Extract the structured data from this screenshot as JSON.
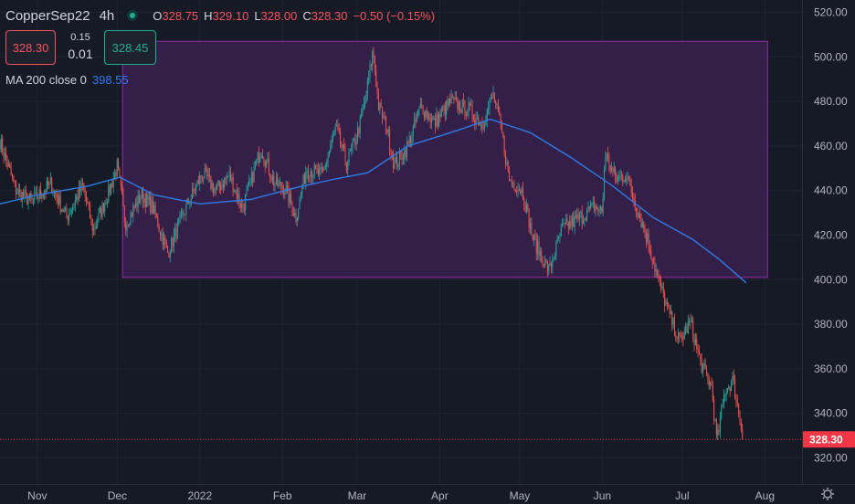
{
  "header": {
    "symbol": "CopperSep22",
    "timeframe": "4h",
    "open_label": "O",
    "open": "328.75",
    "high_label": "H",
    "high": "329.10",
    "low_label": "L",
    "low": "328.00",
    "close_label": "C",
    "close": "328.30",
    "change": "−0.50 (−0.15%)"
  },
  "trade": {
    "sell_price": "328.30",
    "spread_top": "0.15",
    "spread_bottom": "0.01",
    "buy_price": "328.45"
  },
  "indicator": {
    "label": "MA 200 close 0",
    "value": "398.55"
  },
  "colors": {
    "background": "#161a25",
    "up": "#26a69a",
    "down": "#ef5350",
    "ma": "#2e7be6",
    "box_fill": "#3a2150",
    "box_border": "#9c27b0",
    "price_tag": "#f23645"
  },
  "chart_data": {
    "type": "candlestick",
    "ylim": [
      316,
      524
    ],
    "y_ticks": [
      "520.00",
      "500.00",
      "480.00",
      "460.00",
      "440.00",
      "420.00",
      "400.00",
      "380.00",
      "360.00",
      "340.00",
      "320.00"
    ],
    "x_ticks": [
      "Nov",
      "Dec",
      "2022",
      "Feb",
      "Mar",
      "Apr",
      "May",
      "Jun",
      "Jul",
      "Aug"
    ],
    "last_price_label": "328.30",
    "last_price": 328.3,
    "rectangle": {
      "x_start": "2021-12-03",
      "x_end": "2022-08-02",
      "y_top": 507,
      "y_bottom": 401
    },
    "price_path": [
      [
        "2021-10-18",
        462
      ],
      [
        "2021-10-24",
        440
      ],
      [
        "2021-10-30",
        435
      ],
      [
        "2021-11-06",
        443
      ],
      [
        "2021-11-12",
        428
      ],
      [
        "2021-11-18",
        442
      ],
      [
        "2021-11-22",
        422
      ],
      [
        "2021-11-28",
        440
      ],
      [
        "2021-12-01",
        451
      ],
      [
        "2021-12-04",
        425
      ],
      [
        "2021-12-10",
        438
      ],
      [
        "2021-12-14",
        433
      ],
      [
        "2021-12-20",
        412
      ],
      [
        "2021-12-26",
        430
      ],
      [
        "2022-01-02",
        448
      ],
      [
        "2022-01-07",
        440
      ],
      [
        "2022-01-12",
        447
      ],
      [
        "2022-01-17",
        432
      ],
      [
        "2022-01-24",
        459
      ],
      [
        "2022-01-29",
        443
      ],
      [
        "2022-02-02",
        441
      ],
      [
        "2022-02-06",
        428
      ],
      [
        "2022-02-10",
        450
      ],
      [
        "2022-02-16",
        447
      ],
      [
        "2022-02-21",
        468
      ],
      [
        "2022-02-25",
        452
      ],
      [
        "2022-03-01",
        465
      ],
      [
        "2022-03-04",
        480
      ],
      [
        "2022-03-07",
        503
      ],
      [
        "2022-03-09",
        478
      ],
      [
        "2022-03-12",
        469
      ],
      [
        "2022-03-15",
        451
      ],
      [
        "2022-03-20",
        460
      ],
      [
        "2022-03-25",
        478
      ],
      [
        "2022-03-30",
        470
      ],
      [
        "2022-04-05",
        480
      ],
      [
        "2022-04-12",
        476
      ],
      [
        "2022-04-17",
        470
      ],
      [
        "2022-04-21",
        483
      ],
      [
        "2022-04-24",
        468
      ],
      [
        "2022-04-27",
        445
      ],
      [
        "2022-05-02",
        440
      ],
      [
        "2022-05-06",
        418
      ],
      [
        "2022-05-12",
        404
      ],
      [
        "2022-05-17",
        423
      ],
      [
        "2022-05-24",
        428
      ],
      [
        "2022-05-29",
        433
      ],
      [
        "2022-06-01",
        430
      ],
      [
        "2022-06-02",
        457
      ],
      [
        "2022-06-06",
        445
      ],
      [
        "2022-06-10",
        447
      ],
      [
        "2022-06-14",
        432
      ],
      [
        "2022-06-18",
        418
      ],
      [
        "2022-06-22",
        400
      ],
      [
        "2022-06-26",
        385
      ],
      [
        "2022-06-30",
        372
      ],
      [
        "2022-07-04",
        381
      ],
      [
        "2022-07-08",
        362
      ],
      [
        "2022-07-12",
        352
      ],
      [
        "2022-07-14",
        327
      ],
      [
        "2022-07-17",
        350
      ],
      [
        "2022-07-20",
        355
      ],
      [
        "2022-07-24",
        328.3
      ]
    ],
    "ma_path": [
      [
        "2021-10-18",
        434
      ],
      [
        "2021-11-01",
        438
      ],
      [
        "2021-11-20",
        442
      ],
      [
        "2021-12-02",
        446
      ],
      [
        "2021-12-15",
        438
      ],
      [
        "2022-01-01",
        434
      ],
      [
        "2022-01-20",
        436
      ],
      [
        "2022-02-05",
        441
      ],
      [
        "2022-02-20",
        445
      ],
      [
        "2022-03-05",
        448
      ],
      [
        "2022-03-20",
        460
      ],
      [
        "2022-04-05",
        466
      ],
      [
        "2022-04-20",
        472
      ],
      [
        "2022-05-05",
        466
      ],
      [
        "2022-05-20",
        455
      ],
      [
        "2022-06-05",
        442
      ],
      [
        "2022-06-20",
        428
      ],
      [
        "2022-07-05",
        418
      ],
      [
        "2022-07-15",
        409
      ],
      [
        "2022-07-25",
        398.55
      ]
    ]
  }
}
